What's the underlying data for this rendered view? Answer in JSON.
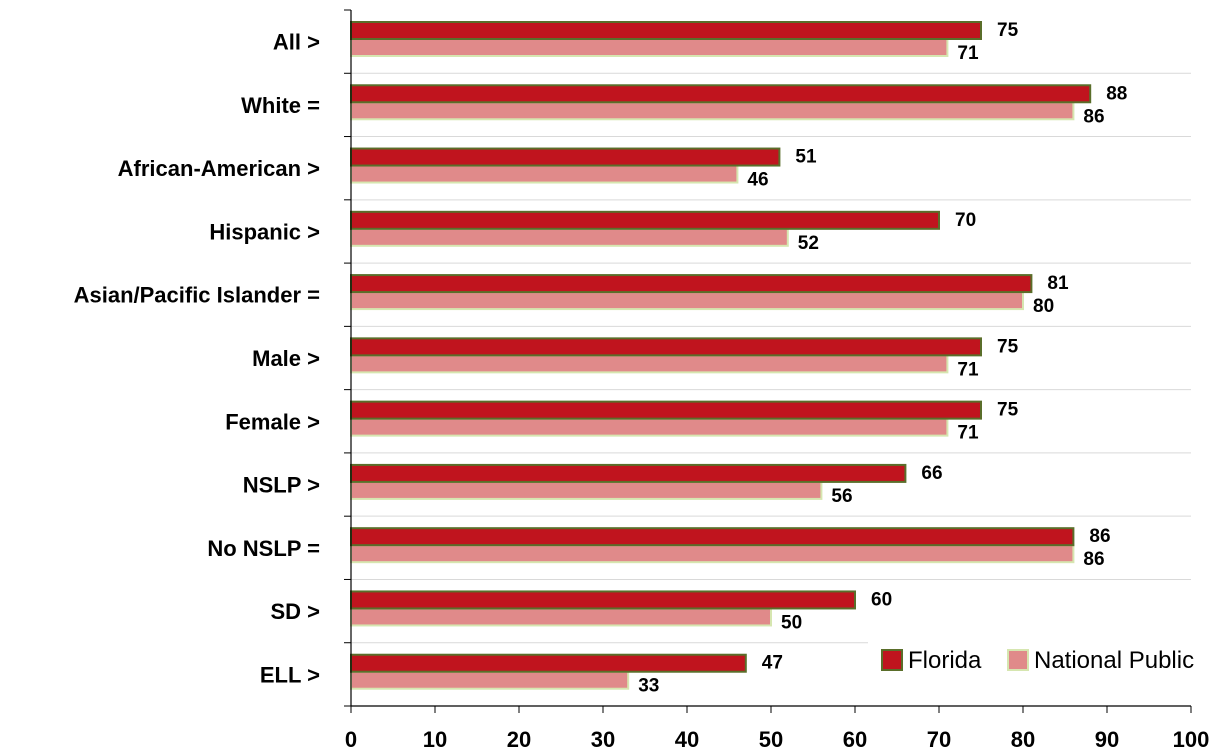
{
  "chart_data": {
    "type": "bar",
    "orientation": "horizontal",
    "title": "",
    "xlabel": "",
    "ylabel": "",
    "xlim": [
      0,
      100
    ],
    "xticks": [
      0,
      10,
      20,
      30,
      40,
      50,
      60,
      70,
      80,
      90,
      100
    ],
    "grid": "horizontal separators between categories",
    "legend_position": "bottom-right",
    "categories": [
      "All >",
      "White =",
      "African-American >",
      "Hispanic >",
      "Asian/Pacific Islander =",
      "Male >",
      "Female >",
      "NSLP >",
      "No NSLP =",
      "SD >",
      "ELL >"
    ],
    "series": [
      {
        "name": "Florida",
        "color": "#c0141e",
        "border": "#5a6e2a",
        "values": [
          75,
          88,
          51,
          70,
          81,
          75,
          75,
          66,
          86,
          60,
          47
        ]
      },
      {
        "name": "National Public",
        "color": "#e08a8a",
        "border": "#d6e6b0",
        "values": [
          71,
          86,
          46,
          52,
          80,
          71,
          71,
          56,
          86,
          50,
          33
        ]
      }
    ]
  }
}
